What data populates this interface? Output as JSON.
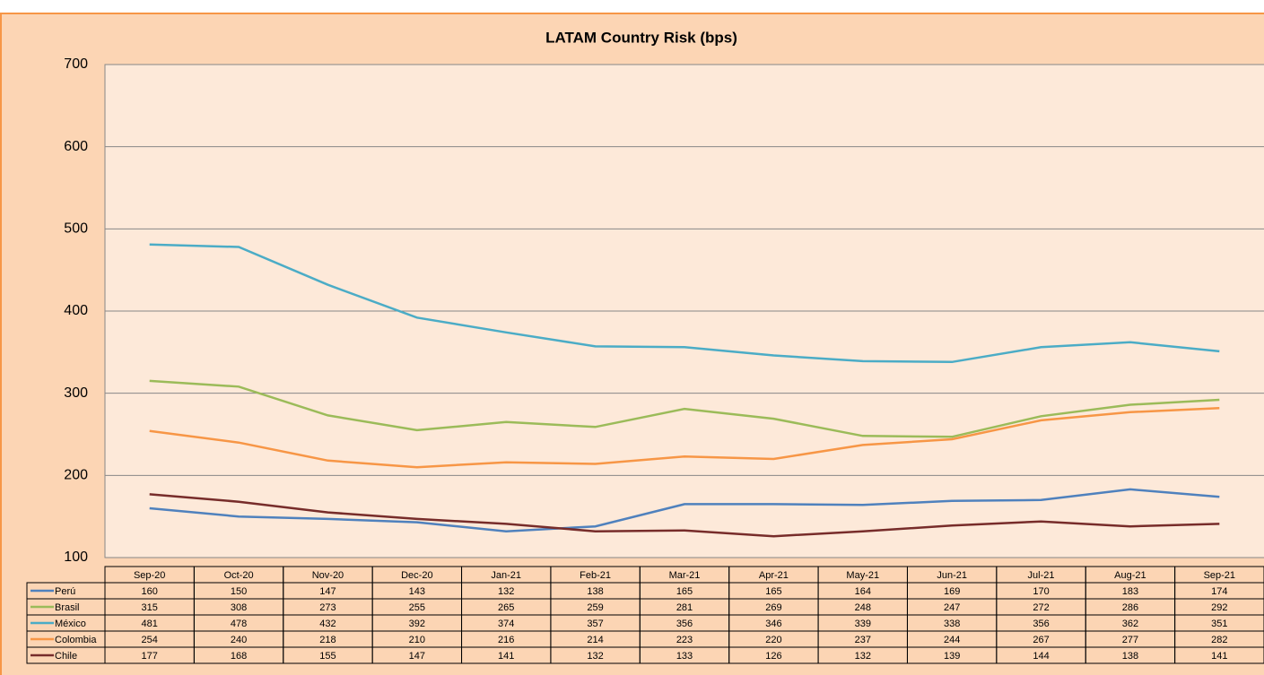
{
  "chart_data": {
    "type": "line",
    "title": "LATAM Country Risk (bps)",
    "categories": [
      "Sep-20",
      "Oct-20",
      "Nov-20",
      "Dec-20",
      "Jan-21",
      "Feb-21",
      "Mar-21",
      "Apr-21",
      "May-21",
      "Jun-21",
      "Jul-21",
      "Aug-21",
      "Sep-21"
    ],
    "series": [
      {
        "name": "Perú",
        "color": "#4f81bd",
        "values": [
          160,
          150,
          147,
          143,
          132,
          138,
          165,
          165,
          164,
          169,
          170,
          183,
          174
        ]
      },
      {
        "name": "Brasil",
        "color": "#9bbb59",
        "values": [
          315,
          308,
          273,
          255,
          265,
          259,
          281,
          269,
          248,
          247,
          272,
          286,
          292
        ]
      },
      {
        "name": "México",
        "color": "#4bacc6",
        "values": [
          481,
          478,
          432,
          392,
          374,
          357,
          356,
          346,
          339,
          338,
          356,
          362,
          351
        ]
      },
      {
        "name": "Colombia",
        "color": "#f79646",
        "values": [
          254,
          240,
          218,
          210,
          216,
          214,
          223,
          220,
          237,
          244,
          267,
          277,
          282
        ]
      },
      {
        "name": "Chile",
        "color": "#772c2a",
        "values": [
          177,
          168,
          155,
          147,
          141,
          132,
          133,
          126,
          132,
          139,
          144,
          138,
          141
        ]
      }
    ],
    "ylim": [
      100,
      700
    ],
    "yticks": [
      100,
      200,
      300,
      400,
      500,
      600,
      700
    ],
    "grid": true
  }
}
